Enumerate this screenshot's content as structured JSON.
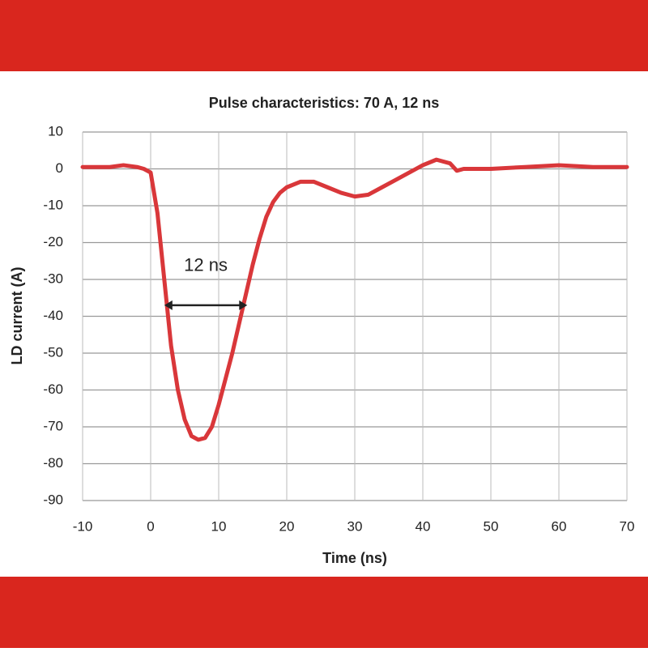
{
  "chart_data": {
    "type": "line",
    "title": "Pulse characteristics: 70 A, 12 ns",
    "x_label": "Time (ns)",
    "y_label": "LD current (A)",
    "x": [
      -10,
      -8,
      -6,
      -4,
      -2,
      -1,
      0,
      1,
      2,
      3,
      4,
      5,
      6,
      7,
      8,
      9,
      10,
      11,
      12,
      13,
      14,
      15,
      16,
      17,
      18,
      19,
      20,
      22,
      24,
      26,
      28,
      30,
      32,
      34,
      36,
      38,
      40,
      42,
      44,
      45,
      46,
      50,
      55,
      60,
      65,
      70
    ],
    "series": [
      {
        "name": "LD current",
        "color": "#d9373a",
        "values": [
          0.5,
          0.5,
          0.5,
          1,
          0.5,
          0,
          -1,
          -12,
          -30,
          -48,
          -60,
          -68,
          -72.5,
          -73.5,
          -73,
          -70,
          -64,
          -57,
          -50,
          -42,
          -34,
          -26,
          -19,
          -13,
          -9,
          -6.5,
          -5,
          -3.5,
          -3.5,
          -5,
          -6.5,
          -7.5,
          -7,
          -5,
          -3,
          -1,
          1,
          2.5,
          1.5,
          -0.5,
          0,
          0,
          0.5,
          1,
          0.5,
          0.5
        ]
      }
    ],
    "xlim": [
      -10,
      70
    ],
    "xticks": [
      -10,
      0,
      10,
      20,
      30,
      40,
      50,
      60,
      70
    ],
    "ylim": [
      -90,
      10
    ],
    "yticks": [
      -90,
      -80,
      -70,
      -60,
      -50,
      -40,
      -30,
      -20,
      -10,
      0,
      10
    ],
    "grid": true,
    "annotation": {
      "text": "12 ns",
      "x_start": 2,
      "x_end": 14.2,
      "y": -37
    }
  }
}
